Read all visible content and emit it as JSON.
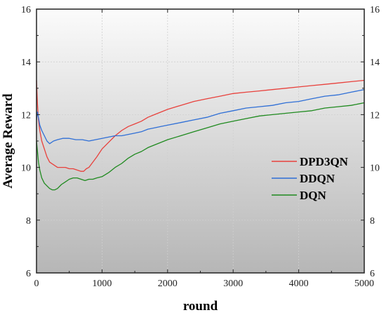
{
  "chart_data": {
    "type": "line",
    "title": "",
    "xlabel": "round",
    "ylabel": "Average Reward",
    "xlim": [
      0,
      5000
    ],
    "ylim": [
      6,
      16
    ],
    "xticks": [
      0,
      1000,
      2000,
      3000,
      4000,
      5000
    ],
    "yticks": [
      6,
      8,
      10,
      12,
      14,
      16
    ],
    "grid": true,
    "legend_position": "right",
    "background": "vertical gradient, light grey at top to darker grey at bottom",
    "series": [
      {
        "name": "DPD3QN",
        "color": "#e8413c",
        "x": [
          0,
          15,
          30,
          50,
          80,
          120,
          160,
          200,
          260,
          320,
          380,
          440,
          500,
          560,
          620,
          680,
          720,
          760,
          800,
          860,
          920,
          1000,
          1100,
          1200,
          1300,
          1400,
          1500,
          1600,
          1700,
          1800,
          1900,
          2000,
          2200,
          2400,
          2600,
          2800,
          3000,
          3200,
          3400,
          3600,
          3800,
          4000,
          4200,
          4400,
          4600,
          4800,
          5000
        ],
        "y": [
          13.3,
          12.4,
          11.8,
          11.4,
          11.0,
          10.7,
          10.4,
          10.2,
          10.1,
          10.0,
          10.0,
          10.0,
          9.95,
          9.95,
          9.9,
          9.85,
          9.85,
          9.95,
          10.0,
          10.2,
          10.4,
          10.7,
          10.95,
          11.2,
          11.4,
          11.55,
          11.65,
          11.75,
          11.9,
          12.0,
          12.1,
          12.2,
          12.35,
          12.5,
          12.6,
          12.7,
          12.8,
          12.85,
          12.9,
          12.95,
          13.0,
          13.05,
          13.1,
          13.15,
          13.2,
          13.25,
          13.3
        ]
      },
      {
        "name": "DDQN",
        "color": "#2f6fd6",
        "x": [
          0,
          15,
          30,
          50,
          80,
          120,
          160,
          200,
          260,
          320,
          400,
          500,
          600,
          700,
          800,
          900,
          1000,
          1100,
          1200,
          1300,
          1400,
          1500,
          1600,
          1700,
          1800,
          1900,
          2000,
          2200,
          2400,
          2600,
          2800,
          3000,
          3200,
          3400,
          3600,
          3800,
          4000,
          4200,
          4400,
          4600,
          4800,
          5000
        ],
        "y": [
          11.8,
          12.1,
          11.9,
          11.6,
          11.4,
          11.2,
          11.0,
          10.9,
          11.0,
          11.05,
          11.1,
          11.1,
          11.05,
          11.05,
          11.0,
          11.05,
          11.1,
          11.15,
          11.2,
          11.2,
          11.25,
          11.3,
          11.35,
          11.45,
          11.5,
          11.55,
          11.6,
          11.7,
          11.8,
          11.9,
          12.05,
          12.15,
          12.25,
          12.3,
          12.35,
          12.45,
          12.5,
          12.6,
          12.7,
          12.75,
          12.85,
          12.95
        ]
      },
      {
        "name": "DQN",
        "color": "#1f8a1f",
        "x": [
          0,
          15,
          30,
          50,
          80,
          120,
          160,
          200,
          240,
          280,
          320,
          380,
          440,
          500,
          560,
          620,
          680,
          740,
          800,
          860,
          920,
          1000,
          1100,
          1200,
          1300,
          1400,
          1500,
          1600,
          1700,
          1800,
          1900,
          2000,
          2200,
          2400,
          2600,
          2800,
          3000,
          3200,
          3400,
          3600,
          3800,
          4000,
          4200,
          4400,
          4600,
          4800,
          5000
        ],
        "y": [
          11.0,
          10.6,
          10.2,
          9.9,
          9.6,
          9.4,
          9.3,
          9.2,
          9.15,
          9.15,
          9.2,
          9.35,
          9.45,
          9.55,
          9.6,
          9.6,
          9.55,
          9.5,
          9.55,
          9.55,
          9.6,
          9.65,
          9.8,
          10.0,
          10.15,
          10.35,
          10.5,
          10.6,
          10.75,
          10.85,
          10.95,
          11.05,
          11.2,
          11.35,
          11.5,
          11.65,
          11.75,
          11.85,
          11.95,
          12.0,
          12.05,
          12.1,
          12.15,
          12.25,
          12.3,
          12.35,
          12.45
        ]
      }
    ]
  }
}
